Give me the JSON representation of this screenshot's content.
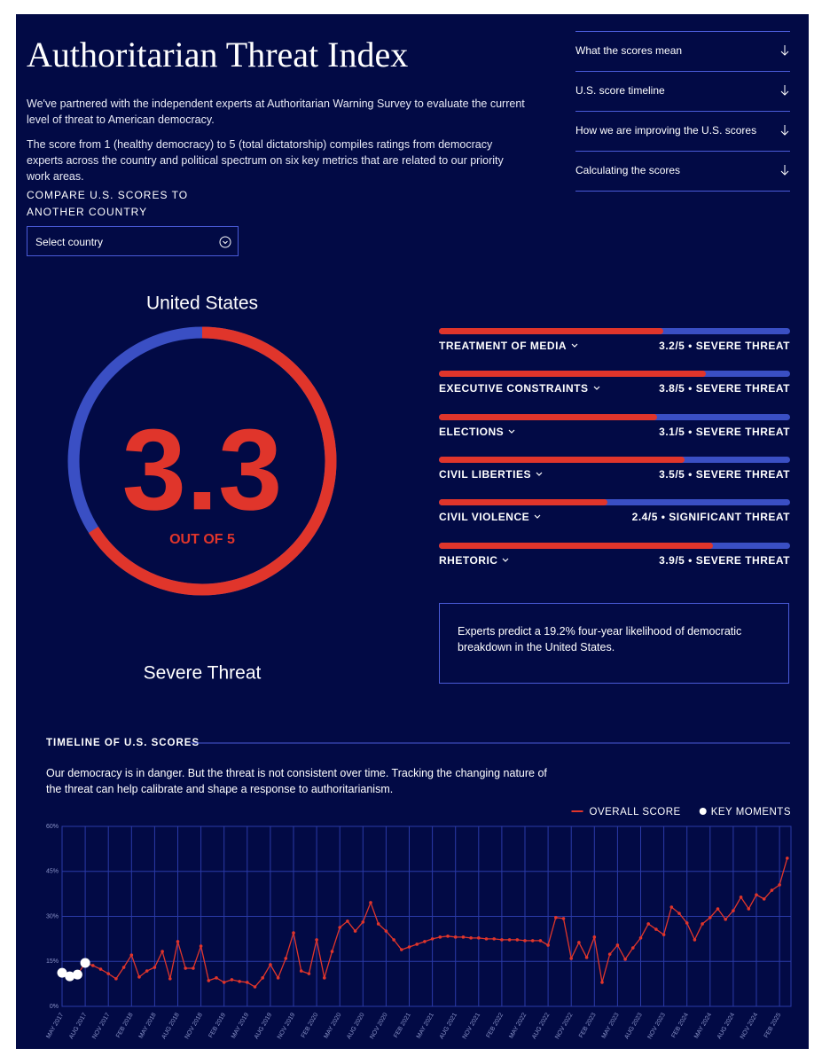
{
  "header": {
    "title": "Authoritarian Threat Index",
    "paragraphs": [
      "We've partnered with the independent experts at Authoritarian Warning Survey to evaluate the current level of threat to American democracy.",
      "The score from 1 (healthy democracy) to 5 (total dictatorship) compiles ratings from democracy experts across the country and political spectrum on six key metrics that are related to our priority work areas."
    ]
  },
  "compare": {
    "label": "COMPARE U.S. SCORES TO ANOTHER COUNTRY",
    "select": "Select country"
  },
  "nav": [
    "What the scores mean",
    "U.S. score timeline",
    "How we are improving the U.S. scores",
    "Calculating the scores"
  ],
  "gauge": {
    "country": "United States",
    "value": 3.3,
    "max": 5,
    "max_label": "OUT OF 5",
    "rating": "Severe Threat"
  },
  "metrics": [
    {
      "name": "TREATMENT OF MEDIA",
      "value": 3.2,
      "max": 5,
      "label": "3.2/5 • SEVERE THREAT"
    },
    {
      "name": "EXECUTIVE CONSTRAINTS",
      "value": 3.8,
      "max": 5,
      "label": "3.8/5 • SEVERE THREAT"
    },
    {
      "name": "ELECTIONS",
      "value": 3.1,
      "max": 5,
      "label": "3.1/5 • SEVERE THREAT"
    },
    {
      "name": "CIVIL LIBERTIES",
      "value": 3.5,
      "max": 5,
      "label": "3.5/5 • SEVERE THREAT"
    },
    {
      "name": "CIVIL VIOLENCE",
      "value": 2.4,
      "max": 5,
      "label": "2.4/5 • SIGNIFICANT THREAT"
    },
    {
      "name": "RHETORIC",
      "value": 3.9,
      "max": 5,
      "label": "3.9/5 • SEVERE THREAT"
    }
  ],
  "prediction": "Experts predict a 19.2% four-year likelihood of democratic breakdown in the United States.",
  "chart_data": {
    "type": "line",
    "title": "TIMELINE OF U.S. SCORES",
    "subtitle": "Our democracy is in danger. But the threat is not consistent over time. Tracking the changing nature of the threat can help calibrate and shape a response to authoritarianism.",
    "categories": [
      "MAY 2017",
      null,
      null,
      "AUG 2017",
      null,
      null,
      "NOV 2017",
      null,
      null,
      "FEB 2018",
      null,
      null,
      "MAY 2018",
      null,
      null,
      "AUG 2018",
      null,
      null,
      "NOV 2018",
      null,
      null,
      "FEB 2019",
      null,
      null,
      "MAY 2019",
      null,
      null,
      "AUG 2019",
      null,
      null,
      "NOV 2019",
      null,
      null,
      "FEB 2020",
      null,
      null,
      "MAY 2020",
      null,
      null,
      "AUG 2020",
      null,
      null,
      "NOV 2020",
      null,
      null,
      "FEB 2021",
      null,
      null,
      "MAY 2021",
      null,
      null,
      "AUG 2021",
      null,
      null,
      "NOV 2021",
      null,
      null,
      "FEB 2022",
      null,
      null,
      "MAY 2022",
      null,
      null,
      "AUG 2022",
      null,
      null,
      "NOV 2022",
      null,
      null,
      "FEB 2023",
      null,
      null,
      "MAY 2023",
      null,
      null,
      "AUG 2023",
      null,
      null,
      "NOV 2023",
      null,
      null,
      "FEB 2024",
      null,
      null,
      "MAY 2024",
      null,
      null,
      "AUG 2024",
      null,
      null,
      "NOV 2024",
      null,
      null,
      "FEB 2025",
      null
    ],
    "series": [
      {
        "name": "OVERALL SCORE",
        "color": "#e0352b",
        "values": [
          11.2,
          10,
          10.6,
          14.5,
          13.6,
          12.4,
          10.9,
          9.2,
          13,
          17.1,
          9.8,
          11.8,
          13,
          18.3,
          9.2,
          21.6,
          12.7,
          12.7,
          20.1,
          8.6,
          9.5,
          8,
          8.9,
          8.3,
          8,
          6.5,
          9.5,
          13.9,
          9.5,
          16,
          24.5,
          11.8,
          10.9,
          22.2,
          9.5,
          18.3,
          26.3,
          28.4,
          25.1,
          28.1,
          34.6,
          27.5,
          25.1,
          22.2,
          18.9,
          19.8,
          20.7,
          21.6,
          22.5,
          23.1,
          23.4,
          23.1,
          23.1,
          22.8,
          22.8,
          22.5,
          22.5,
          22.2,
          22.2,
          22.2,
          21.9,
          21.9,
          21.9,
          20.4,
          29.6,
          29.3,
          16,
          21.3,
          16.3,
          23.1,
          8,
          17.4,
          20.4,
          15.7,
          19.5,
          22.8,
          27.5,
          25.7,
          23.9,
          33.1,
          31,
          27.8,
          22.2,
          27.5,
          29.6,
          32.5,
          29,
          31.9,
          36.4,
          32.5,
          37.2,
          35.8,
          38.7,
          40.5,
          49.4
        ]
      },
      {
        "name": "KEY MOMENTS",
        "type": "scatter",
        "color": "#ffffff",
        "values": [
          11.2,
          10,
          10.6,
          14.5,
          null,
          null,
          null,
          null,
          null,
          null,
          null,
          null,
          null,
          null,
          null,
          null,
          null,
          null,
          null,
          null,
          null,
          null,
          null,
          null,
          null,
          null,
          null,
          null,
          null,
          null,
          null,
          null,
          null,
          null,
          null,
          null,
          null,
          null,
          null,
          null,
          null,
          null,
          null,
          null,
          null,
          null,
          null,
          null,
          null,
          null,
          null,
          null,
          null,
          null,
          null,
          null,
          null,
          null,
          null,
          null,
          null,
          null,
          null,
          null,
          null,
          null,
          null,
          null,
          null,
          null,
          null,
          null,
          null,
          null,
          null,
          null,
          null,
          null,
          null,
          null,
          null,
          null,
          null,
          null,
          null,
          null,
          null,
          null,
          null,
          null,
          null,
          null,
          null,
          null,
          null
        ]
      }
    ],
    "ylim": [
      0,
      60
    ],
    "yticks": [
      {
        "value": 0,
        "label": "0%"
      },
      {
        "value": 15,
        "label": "15%"
      },
      {
        "value": 30,
        "label": "30%"
      },
      {
        "value": 45,
        "label": "45%"
      },
      {
        "value": 60,
        "label": "60%"
      }
    ],
    "grid": true,
    "legend": "top-right"
  }
}
